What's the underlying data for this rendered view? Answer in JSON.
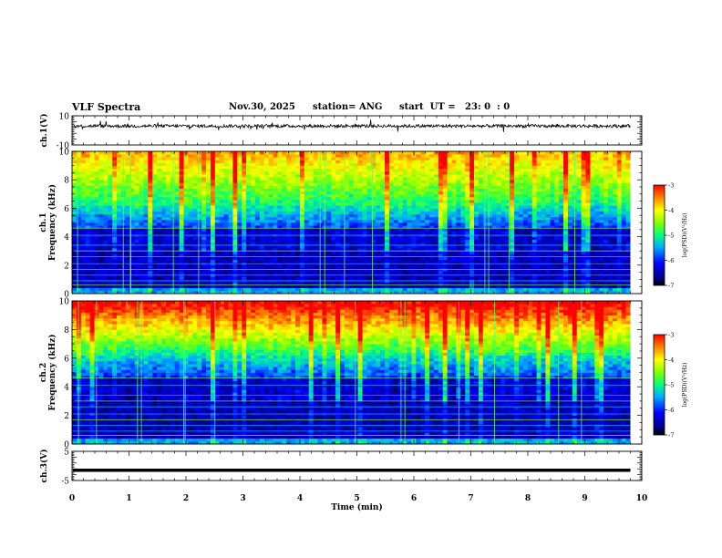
{
  "header": {
    "title": "VLF Spectra",
    "date": "Nov.30, 2025",
    "station": "station= ANG",
    "start": "start  UT =   23: 0  : 0"
  },
  "chart_data": [
    {
      "type": "line",
      "panel": "ch1-waveform",
      "ylabel": "ch.1(V)",
      "ylim": [
        -10,
        10
      ],
      "yticks": [
        "10",
        "-10"
      ],
      "description_level": "noise trace centred near 3 V over 0-9.8 min"
    },
    {
      "type": "heatmap",
      "panel": "ch1-spectrogram",
      "ylabel_top": "ch.1",
      "ylabel": "Frequency (kHz)",
      "ylim": [
        0,
        10
      ],
      "yticks": [
        "0",
        "2",
        "4",
        "6",
        "8",
        "10"
      ],
      "colorbar": {
        "label": "log(PSD)(V²/Hz)",
        "range": [
          -7,
          -3
        ],
        "ticks": [
          "-3",
          "-4",
          "-5",
          "-6",
          "-7"
        ]
      }
    },
    {
      "type": "heatmap",
      "panel": "ch2-spectrogram",
      "ylabel_top": "ch.2",
      "ylabel": "Frequency (kHz)",
      "ylim": [
        0,
        10
      ],
      "yticks": [
        "0",
        "2",
        "4",
        "6",
        "8",
        "10"
      ],
      "colorbar": {
        "label": "log(PSD)(V²/Hz)",
        "range": [
          -7,
          -3
        ],
        "ticks": [
          "-3",
          "-4",
          "-5",
          "-6",
          "-7"
        ]
      }
    },
    {
      "type": "line",
      "panel": "ch3-waveform",
      "ylabel": "ch.3(V)",
      "ylim": [
        -5,
        5
      ],
      "yticks": [
        "5",
        "-5"
      ],
      "level": -1.5
    }
  ],
  "x_axis": {
    "label": "Time (min)",
    "range": [
      0,
      10
    ],
    "data_end": 9.8,
    "ticks": [
      "0",
      "1",
      "2",
      "3",
      "4",
      "5",
      "6",
      "7",
      "8",
      "9",
      "10"
    ]
  }
}
